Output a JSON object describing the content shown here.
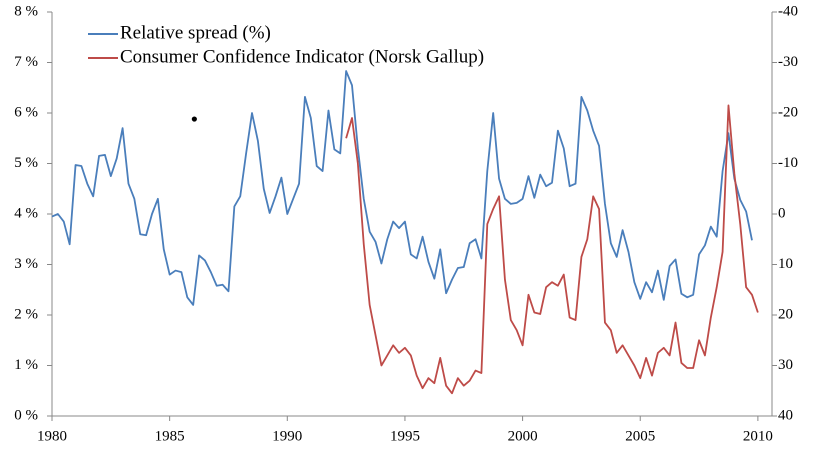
{
  "chart_data": {
    "type": "line",
    "legend": "upper left",
    "xlim": [
      1980,
      2010.6
    ],
    "xticks": [
      1980,
      1985,
      1990,
      1995,
      2000,
      2005,
      2010
    ],
    "ylim": [
      0,
      8
    ],
    "yticks": [
      {
        "value": 0,
        "label": "0 %"
      },
      {
        "value": 1,
        "label": "1 %"
      },
      {
        "value": 2,
        "label": "2 %"
      },
      {
        "value": 3,
        "label": "3 %"
      },
      {
        "value": 4,
        "label": "4 %"
      },
      {
        "value": 5,
        "label": "5 %"
      },
      {
        "value": 6,
        "label": "6 %"
      },
      {
        "value": 7,
        "label": "7 %"
      },
      {
        "value": 8,
        "label": "8 %"
      }
    ],
    "y2lim": [
      40,
      -40
    ],
    "y2ticks": [
      -40,
      -30,
      -20,
      -10,
      0,
      10,
      20,
      30,
      40
    ],
    "annotation_point": {
      "x": 1986.05,
      "y": 5.88,
      "color": "#000000"
    },
    "series": [
      {
        "name": "Relative spread (%)",
        "color": "#4a7ebb",
        "x": [
          1980,
          1980.25,
          1980.5,
          1980.75,
          1981,
          1981.25,
          1981.5,
          1981.75,
          1982,
          1982.25,
          1982.5,
          1982.75,
          1983,
          1983.25,
          1983.5,
          1983.75,
          1984,
          1984.25,
          1984.5,
          1984.75,
          1985,
          1985.25,
          1985.5,
          1985.75,
          1986,
          1986.25,
          1986.5,
          1986.75,
          1987,
          1987.25,
          1987.5,
          1987.75,
          1988,
          1988.25,
          1988.5,
          1988.75,
          1989,
          1989.25,
          1989.5,
          1989.75,
          1990,
          1990.25,
          1990.5,
          1990.75,
          1991,
          1991.25,
          1991.5,
          1991.75,
          1992,
          1992.25,
          1992.5,
          1992.75,
          1993,
          1993.25,
          1993.5,
          1993.75,
          1994,
          1994.25,
          1994.5,
          1994.75,
          1995,
          1995.25,
          1995.5,
          1995.75,
          1996,
          1996.25,
          1996.5,
          1996.75,
          1997,
          1997.25,
          1997.5,
          1997.75,
          1998,
          1998.25,
          1998.5,
          1998.75,
          1999,
          1999.25,
          1999.5,
          1999.75,
          2000,
          2000.25,
          2000.5,
          2000.75,
          2001,
          2001.25,
          2001.5,
          2001.75,
          2002,
          2002.25,
          2002.5,
          2002.75,
          2003,
          2003.25,
          2003.5,
          2003.75,
          2004,
          2004.25,
          2004.5,
          2004.75,
          2005,
          2005.25,
          2005.5,
          2005.75,
          2006,
          2006.25,
          2006.5,
          2006.75,
          2007,
          2007.25,
          2007.5,
          2007.75,
          2008,
          2008.25,
          2008.5,
          2008.75,
          2009,
          2009.25,
          2009.5,
          2009.75
        ],
        "values": [
          3.95,
          4.0,
          3.85,
          3.4,
          4.97,
          4.95,
          4.6,
          4.35,
          5.15,
          5.17,
          4.75,
          5.1,
          5.7,
          4.6,
          4.3,
          3.6,
          3.58,
          4.0,
          4.3,
          3.3,
          2.8,
          2.88,
          2.85,
          2.35,
          2.2,
          3.18,
          3.08,
          2.85,
          2.58,
          2.6,
          2.47,
          4.15,
          4.35,
          5.2,
          6.0,
          5.45,
          4.5,
          4.02,
          4.35,
          4.72,
          4.0,
          4.3,
          4.6,
          6.32,
          5.9,
          4.95,
          4.85,
          6.05,
          5.28,
          5.2,
          6.83,
          6.55,
          5.3,
          4.3,
          3.65,
          3.45,
          3.02,
          3.5,
          3.85,
          3.72,
          3.85,
          3.2,
          3.12,
          3.55,
          3.05,
          2.72,
          3.3,
          2.43,
          2.7,
          2.93,
          2.95,
          3.42,
          3.5,
          3.12,
          4.85,
          6.0,
          4.7,
          4.3,
          4.2,
          4.22,
          4.3,
          4.75,
          4.32,
          4.78,
          4.55,
          4.62,
          5.65,
          5.3,
          4.55,
          4.6,
          6.32,
          6.05,
          5.65,
          5.35,
          4.2,
          3.42,
          3.15,
          3.68,
          3.25,
          2.65,
          2.32,
          2.65,
          2.45,
          2.88,
          2.3,
          2.97,
          3.1,
          2.42,
          2.35,
          2.4,
          3.2,
          3.38,
          3.75,
          3.55,
          4.85,
          5.6,
          4.7,
          4.28,
          4.05,
          3.48
        ]
      },
      {
        "name": "Consumer Confidence Indicator (Norsk Gallup)",
        "color": "#be4b48",
        "axis": "y2",
        "x": [
          1992.5,
          1992.75,
          1993,
          1993.25,
          1993.5,
          1993.75,
          1994,
          1994.25,
          1994.5,
          1994.75,
          1995,
          1995.25,
          1995.5,
          1995.75,
          1996,
          1996.25,
          1996.5,
          1996.75,
          1997,
          1997.25,
          1997.5,
          1997.75,
          1998,
          1998.25,
          1998.5,
          1998.75,
          1999,
          1999.25,
          1999.5,
          1999.75,
          2000,
          2000.25,
          2000.5,
          2000.75,
          2001,
          2001.25,
          2001.5,
          2001.75,
          2002,
          2002.25,
          2002.5,
          2002.75,
          2003,
          2003.25,
          2003.5,
          2003.75,
          2004,
          2004.25,
          2004.5,
          2004.75,
          2005,
          2005.25,
          2005.5,
          2005.75,
          2006,
          2006.25,
          2006.5,
          2006.75,
          2007,
          2007.25,
          2007.5,
          2007.75,
          2008,
          2008.25,
          2008.5,
          2008.75,
          2009,
          2009.25,
          2009.5,
          2009.75,
          2010
        ],
        "values": [
          -15,
          -19,
          -10,
          6,
          18,
          24,
          30,
          28,
          26,
          27.5,
          26.5,
          28,
          32,
          34.5,
          32.5,
          33.5,
          28.5,
          34,
          35.5,
          32.5,
          34,
          33,
          31,
          31.5,
          2,
          -1,
          -3.5,
          13,
          21,
          23,
          26,
          16,
          19.5,
          19.8,
          14.5,
          13.5,
          14.2,
          12,
          20.5,
          21,
          8.5,
          5,
          -3.5,
          -1,
          21.5,
          23,
          27.5,
          26,
          28,
          30,
          32.5,
          28.5,
          32,
          27.5,
          26.5,
          28,
          21.5,
          29.5,
          30.5,
          30.5,
          25,
          28,
          20.5,
          14.5,
          7.5,
          -21.5,
          -8,
          2,
          14.5,
          16,
          19.5
        ]
      }
    ]
  }
}
